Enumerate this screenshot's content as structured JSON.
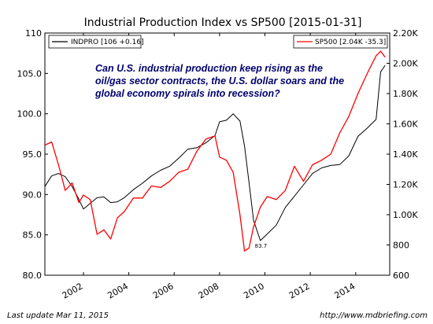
{
  "chart_data": {
    "type": "line",
    "title": "Industrial Production Index vs SP500  [2015-01-31]",
    "xlabel": "",
    "ylabel_left": "",
    "ylabel_right": "",
    "xlim": [
      2000.3,
      2015.5
    ],
    "ylim_left": [
      80.0,
      110.0
    ],
    "ylim_right": [
      600,
      2200
    ],
    "x_ticks": [
      2002,
      2004,
      2006,
      2008,
      2010,
      2012,
      2014
    ],
    "x_tick_labels": [
      "2002",
      "2004",
      "2006",
      "2008",
      "2010",
      "2012",
      "2014"
    ],
    "y_left_ticks": [
      80.0,
      85.0,
      90.0,
      95.0,
      100.0,
      105.0,
      110.0
    ],
    "y_left_tick_labels": [
      "80.0",
      "85.0",
      "90.0",
      "95.0",
      "100.0",
      "105.0",
      "110"
    ],
    "y_right_ticks": [
      600,
      800,
      1000,
      1200,
      1400,
      1600,
      1800,
      2000,
      2200
    ],
    "y_right_tick_labels": [
      "600",
      "800",
      "1.00K",
      "1.20K",
      "1.40K",
      "1.60K",
      "1.80K",
      "2.00K",
      "2.20K"
    ],
    "grid": false,
    "series": [
      {
        "name": "INDPRO [106 +0.16]",
        "axis": "left",
        "color": "#000000",
        "x": [
          2000.3,
          2000.6,
          2000.9,
          2001.2,
          2001.5,
          2001.8,
          2002.0,
          2002.3,
          2002.6,
          2002.9,
          2003.2,
          2003.5,
          2003.8,
          2004.2,
          2004.6,
          2005.0,
          2005.4,
          2005.8,
          2006.2,
          2006.6,
          2007.0,
          2007.4,
          2007.8,
          2008.0,
          2008.3,
          2008.6,
          2008.9,
          2009.1,
          2009.3,
          2009.5,
          2009.8,
          2010.1,
          2010.5,
          2010.9,
          2011.3,
          2011.7,
          2012.1,
          2012.5,
          2012.9,
          2013.3,
          2013.7,
          2014.1,
          2014.5,
          2014.9,
          2015.1,
          2015.3
        ],
        "values": [
          91.0,
          92.3,
          92.6,
          92.2,
          91.0,
          89.4,
          88.2,
          88.9,
          89.6,
          89.7,
          89.0,
          89.1,
          89.6,
          90.6,
          91.4,
          92.3,
          93.0,
          93.5,
          94.5,
          95.6,
          95.8,
          96.4,
          97.3,
          99.0,
          99.2,
          100.0,
          99.1,
          96.0,
          91.5,
          86.8,
          84.3,
          85.1,
          86.2,
          88.4,
          89.8,
          91.2,
          92.6,
          93.3,
          93.6,
          93.7,
          94.8,
          97.2,
          98.2,
          99.3,
          105.2,
          106.0
        ],
        "annotations": [
          {
            "x": 2009.45,
            "y": 83.7,
            "text": "83.7"
          }
        ]
      },
      {
        "name": "SP500 [2.04K -35.3]",
        "axis": "right",
        "color": "#ff0000",
        "x": [
          2000.3,
          2000.6,
          2000.9,
          2001.2,
          2001.5,
          2001.8,
          2002.0,
          2002.3,
          2002.6,
          2002.9,
          2003.2,
          2003.5,
          2003.8,
          2004.2,
          2004.6,
          2005.0,
          2005.4,
          2005.8,
          2006.2,
          2006.6,
          2007.0,
          2007.4,
          2007.8,
          2008.0,
          2008.3,
          2008.6,
          2008.9,
          2009.1,
          2009.3,
          2009.5,
          2009.8,
          2010.1,
          2010.5,
          2010.9,
          2011.3,
          2011.7,
          2012.1,
          2012.5,
          2012.9,
          2013.3,
          2013.7,
          2014.1,
          2014.5,
          2014.9,
          2015.1,
          2015.3
        ],
        "values": [
          1460,
          1480,
          1330,
          1160,
          1210,
          1080,
          1130,
          1100,
          870,
          900,
          840,
          980,
          1020,
          1110,
          1110,
          1190,
          1180,
          1220,
          1280,
          1300,
          1420,
          1500,
          1520,
          1380,
          1360,
          1280,
          1000,
          760,
          780,
          920,
          1050,
          1120,
          1100,
          1160,
          1320,
          1220,
          1330,
          1360,
          1400,
          1540,
          1650,
          1800,
          1930,
          2050,
          2080,
          2040
        ]
      }
    ],
    "legend": [
      {
        "label": "INDPRO [106 +0.16]",
        "color": "#000000",
        "position": "top-left"
      },
      {
        "label": "SP500 [2.04K -35.3]",
        "color": "#ff0000",
        "position": "top-right"
      }
    ],
    "annotation_lines": [
      "Can U.S. industrial production keep rising as the",
      "oil/gas sector contracts, the U.S. dollar soars and the",
      "global economy spirals into recession?"
    ]
  },
  "footer": {
    "left": "Last update Mar 11, 2015",
    "right": "http://www.mdbriefing.com"
  }
}
